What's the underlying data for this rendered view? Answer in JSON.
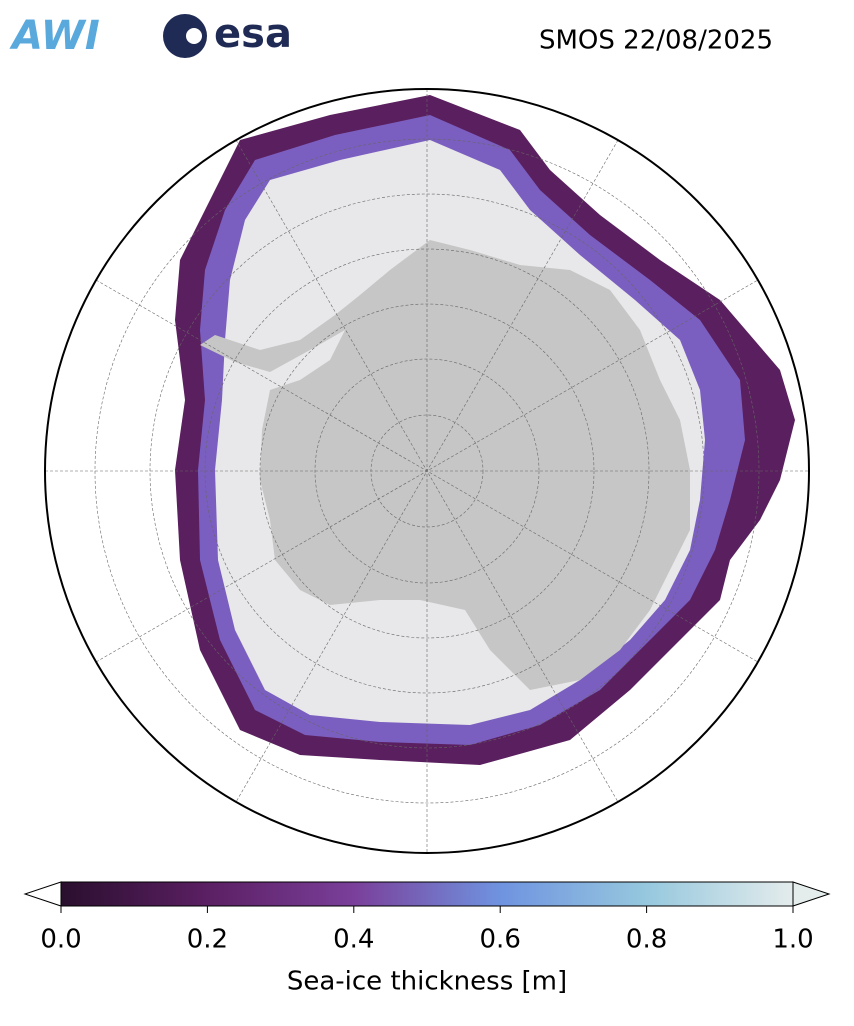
{
  "header": {
    "logos": [
      "AWI",
      "esa"
    ],
    "title": "SMOS 22/08/2025"
  },
  "colorbar": {
    "label": "Sea-ice thickness [m]",
    "lim": [
      0,
      1
    ],
    "ticks": [
      {
        "value": 0,
        "label": "0.0"
      },
      {
        "value": 0.2,
        "label": "0.2"
      },
      {
        "value": 0.4,
        "label": "0.4"
      },
      {
        "value": 0.6,
        "label": "0.6"
      },
      {
        "value": 0.8,
        "label": "0.8"
      },
      {
        "value": 1,
        "label": "1.0"
      }
    ]
  }
}
